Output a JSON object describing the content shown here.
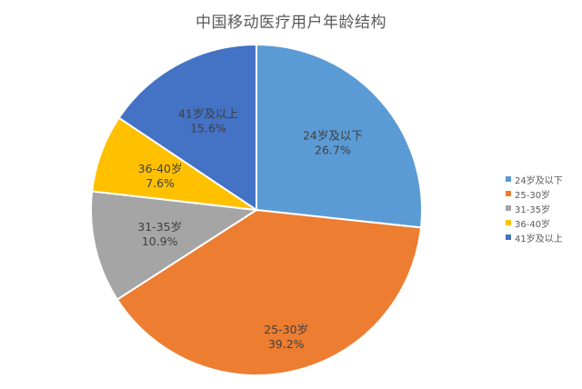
{
  "chart_data": {
    "type": "pie",
    "title": "中国移动医疗用户年龄结构",
    "categories": [
      "24岁及以下",
      "25-30岁",
      "31-35岁",
      "36-40岁",
      "41岁及以上"
    ],
    "values": [
      26.7,
      39.2,
      10.9,
      7.6,
      15.6
    ],
    "value_labels": [
      "26.7%",
      "39.2%",
      "10.9%",
      "7.6%",
      "15.6%"
    ],
    "colors": [
      "#5B9BD5",
      "#ED7D31",
      "#A5A5A5",
      "#FFC000",
      "#4472C4"
    ],
    "legend_position": "right"
  }
}
